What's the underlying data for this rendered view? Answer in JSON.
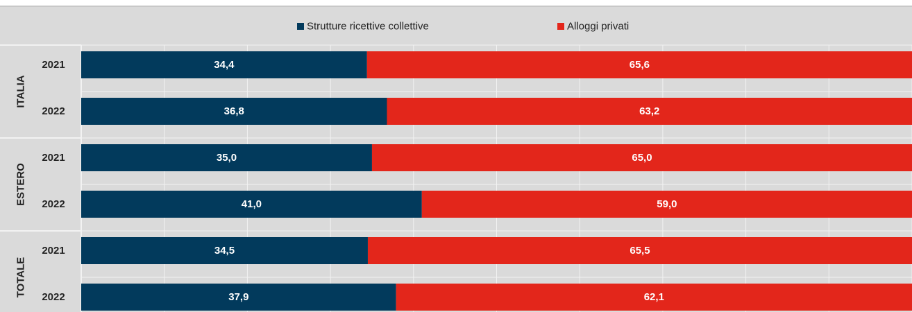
{
  "chart_data": {
    "type": "bar",
    "orientation": "horizontal",
    "stacked": true,
    "groups": [
      {
        "name": "ITALIA",
        "categories": [
          "2021",
          "2022"
        ]
      },
      {
        "name": "ESTERO",
        "categories": [
          "2021",
          "2022"
        ]
      },
      {
        "name": "TOTALE",
        "categories": [
          "2021",
          "2022"
        ]
      }
    ],
    "series": [
      {
        "name": "Strutture ricettive collettive",
        "color": "#023a5c",
        "values": [
          34.4,
          36.8,
          35.0,
          41.0,
          34.5,
          37.9
        ],
        "labels": [
          "34,4",
          "36,8",
          "35,0",
          "41,0",
          "34,5",
          "37,9"
        ]
      },
      {
        "name": "Alloggi privati",
        "color": "#e3261b",
        "values": [
          65.6,
          63.2,
          65.0,
          59.0,
          65.5,
          62.1
        ],
        "labels": [
          "65,6",
          "63,2",
          "65,0",
          "59,0",
          "65,5",
          "62,1"
        ]
      }
    ],
    "xlim": [
      0,
      100
    ],
    "grid": true,
    "legend": "top-center",
    "title": "",
    "xlabel": "",
    "ylabel": ""
  }
}
